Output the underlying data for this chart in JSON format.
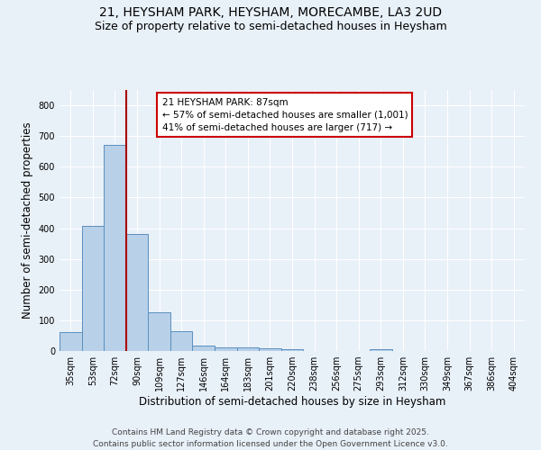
{
  "title_line1": "21, HEYSHAM PARK, HEYSHAM, MORECAMBE, LA3 2UD",
  "title_line2": "Size of property relative to semi-detached houses in Heysham",
  "xlabel": "Distribution of semi-detached houses by size in Heysham",
  "ylabel": "Number of semi-detached properties",
  "categories": [
    "35sqm",
    "53sqm",
    "72sqm",
    "90sqm",
    "109sqm",
    "127sqm",
    "146sqm",
    "164sqm",
    "183sqm",
    "201sqm",
    "220sqm",
    "238sqm",
    "256sqm",
    "275sqm",
    "293sqm",
    "312sqm",
    "330sqm",
    "349sqm",
    "367sqm",
    "386sqm",
    "404sqm"
  ],
  "values": [
    63,
    408,
    670,
    380,
    125,
    65,
    18,
    13,
    12,
    8,
    7,
    0,
    0,
    0,
    5,
    0,
    0,
    0,
    0,
    0,
    0
  ],
  "bar_color": "#b8d0e8",
  "bar_edge_color": "#5a8fc0",
  "vline_color": "#aa0000",
  "vline_x_index": 2.5,
  "annotation_title": "21 HEYSHAM PARK: 87sqm",
  "annotation_line1": "← 57% of semi-detached houses are smaller (1,001)",
  "annotation_line2": "41% of semi-detached houses are larger (717) →",
  "annotation_box_color": "#ffffff",
  "annotation_box_edge": "#cc0000",
  "ylim": [
    0,
    850
  ],
  "yticks": [
    0,
    100,
    200,
    300,
    400,
    500,
    600,
    700,
    800
  ],
  "footer_line1": "Contains HM Land Registry data © Crown copyright and database right 2025.",
  "footer_line2": "Contains public sector information licensed under the Open Government Licence v3.0.",
  "background_color": "#e8f0f8",
  "grid_color": "#ffffff",
  "title_fontsize": 10,
  "subtitle_fontsize": 9,
  "axis_label_fontsize": 8.5,
  "tick_fontsize": 7,
  "annotation_fontsize": 7.5,
  "footer_fontsize": 6.5
}
